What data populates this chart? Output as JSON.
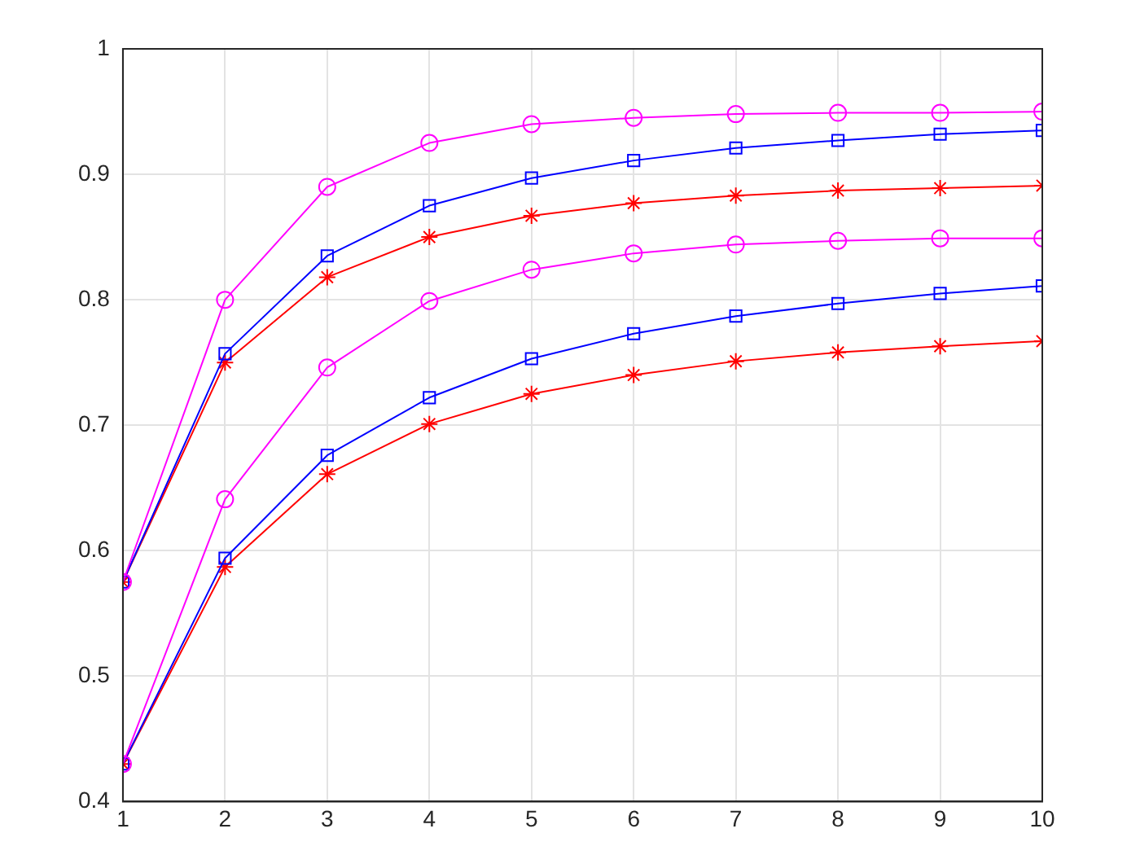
{
  "chart_data": {
    "type": "line",
    "x": [
      1,
      2,
      3,
      4,
      5,
      6,
      7,
      8,
      9,
      10
    ],
    "xlim": [
      1,
      10
    ],
    "xticks": [
      1,
      2,
      3,
      4,
      5,
      6,
      7,
      8,
      9,
      10
    ],
    "ylim": [
      0.4,
      1
    ],
    "yticks": [
      {
        "value": 0.4,
        "label": "0.4"
      },
      {
        "value": 0.5,
        "label": "0.5"
      },
      {
        "value": 0.6,
        "label": "0.6"
      },
      {
        "value": 0.7,
        "label": "0.7"
      },
      {
        "value": 0.8,
        "label": "0.8"
      },
      {
        "value": 0.9,
        "label": "0.9"
      },
      {
        "value": 1,
        "label": "1"
      }
    ],
    "grid": true,
    "legend": false,
    "line_style": "solid",
    "series": [
      {
        "color": "#ff00ff",
        "marker": "circle",
        "values": [
          0.575,
          0.8,
          0.89,
          0.925,
          0.94,
          0.945,
          0.948,
          0.949,
          0.949,
          0.95
        ]
      },
      {
        "color": "#0000ff",
        "marker": "square",
        "values": [
          0.575,
          0.757,
          0.835,
          0.875,
          0.897,
          0.911,
          0.921,
          0.927,
          0.932,
          0.935
        ]
      },
      {
        "color": "#ff0000",
        "marker": "cross",
        "values": [
          0.575,
          0.75,
          0.818,
          0.85,
          0.867,
          0.877,
          0.883,
          0.887,
          0.889,
          0.891
        ]
      },
      {
        "color": "#ff00ff",
        "marker": "circle",
        "values": [
          0.43,
          0.641,
          0.746,
          0.799,
          0.824,
          0.837,
          0.844,
          0.847,
          0.849,
          0.849
        ]
      },
      {
        "color": "#0000ff",
        "marker": "square",
        "values": [
          0.43,
          0.594,
          0.676,
          0.722,
          0.753,
          0.773,
          0.787,
          0.797,
          0.805,
          0.811
        ]
      },
      {
        "color": "#ff0000",
        "marker": "cross",
        "values": [
          0.43,
          0.587,
          0.661,
          0.701,
          0.725,
          0.74,
          0.751,
          0.758,
          0.763,
          0.767
        ]
      }
    ]
  }
}
